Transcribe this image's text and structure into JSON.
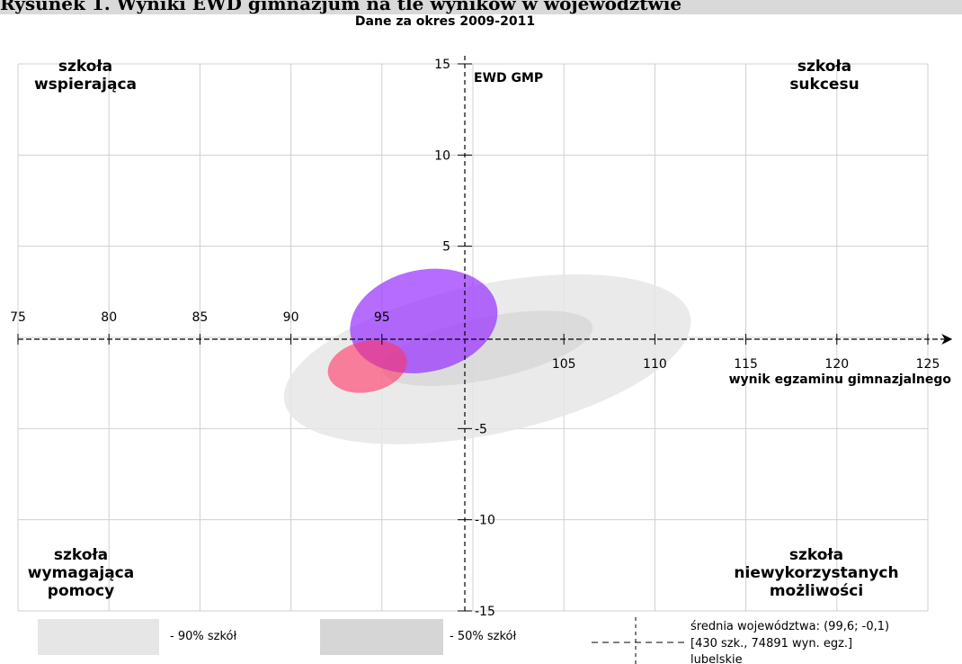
{
  "heading": "Rysunek 1. Wyniki EWD gimnazjum na tle wyników w województwie",
  "chart_data": {
    "type": "scatter",
    "title": "Dane za okres 2009-2011",
    "xlabel": "wynik egzaminu gimnazjalnego",
    "ylabel": "EWD GMP",
    "xlim": [
      75,
      125
    ],
    "ylim": [
      -15,
      15
    ],
    "x_ticks": [
      "75",
      "80",
      "85",
      "90",
      "95",
      "105",
      "110",
      "115",
      "120",
      "125"
    ],
    "y_ticks": [
      "15",
      "10",
      "5",
      "-5",
      "-10",
      "-15"
    ],
    "grid": true,
    "quadrants": {
      "top_left": [
        "szkoła",
        "wspierająca"
      ],
      "top_right": [
        "szkoła",
        "sukcesu"
      ],
      "bottom_left": [
        "szkoła",
        "wymagająca",
        "pomocy"
      ],
      "bottom_right": [
        "szkoła",
        "niewykorzystanych",
        "możliwości"
      ]
    },
    "regions": [
      {
        "label": "- 90% szkół",
        "cx": 100.8,
        "cy": -1.2,
        "rx": 11.4,
        "ry": 4.1,
        "angle": -12,
        "color": "#e6e6e6",
        "opacity": 0.85
      },
      {
        "label": "- 50% szkół",
        "cx": 100.8,
        "cy": -0.6,
        "rx": 5.9,
        "ry": 1.7,
        "angle": -12,
        "color": "#d6d6d6",
        "opacity": 0.75
      }
    ],
    "ellipses": [
      {
        "cx": 97.3,
        "cy": 0.9,
        "rx": 4.1,
        "ry": 2.8,
        "angle": -12,
        "color": "#9933ff",
        "opacity": 0.72
      },
      {
        "cx": 94.2,
        "cy": -1.6,
        "rx": 2.2,
        "ry": 1.4,
        "angle": -12,
        "color": "#ff3366",
        "opacity": 0.6
      }
    ],
    "legend": {
      "region_90": "- 90% szkół",
      "region_50": "- 50% szkół",
      "average_line1": "średnia województwa: (99,6; -0,1)",
      "average_line2": "[430 szk., 74891 wyn. egz.]",
      "average_line3": "lubelskie"
    }
  }
}
